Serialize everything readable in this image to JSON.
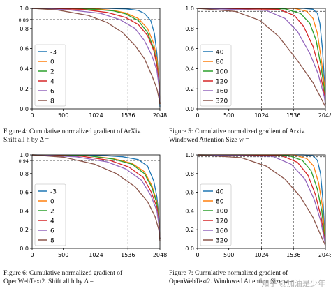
{
  "watermark": "知乎 @加油是少年",
  "figures": [
    {
      "id": "fig4",
      "caption": "Figure 4: Cumulative normalized gradient of ArXiv.\nShift all h by Δ =",
      "chart_data": {
        "type": "line",
        "xlim": [
          0,
          2048
        ],
        "ylim": [
          0,
          1.0
        ],
        "x_ticks": [
          "0",
          "500",
          "1024",
          "1536",
          "2048"
        ],
        "x_tick_values": [
          0,
          500,
          1024,
          1536,
          2048
        ],
        "y_ticks": [
          "0.0",
          "0.2",
          "0.4",
          "0.6",
          "0.8",
          "0.89",
          "1.0"
        ],
        "y_tick_values": [
          0,
          0.2,
          0.4,
          0.6,
          0.8,
          0.89,
          1.0
        ],
        "vlines": [
          1024,
          1536
        ],
        "hline": 0.89,
        "legend_position": "lower-left",
        "series": [
          {
            "name": "-3",
            "color": "#1f77b4",
            "x": [
              0,
              1200,
              1500,
              1700,
              1800,
              1900,
              1960,
              2000,
              2030,
              2048
            ],
            "y": [
              1.0,
              1.0,
              0.995,
              0.98,
              0.95,
              0.88,
              0.75,
              0.55,
              0.3,
              0.02
            ]
          },
          {
            "name": "0",
            "color": "#ff7f0e",
            "x": [
              0,
              1000,
              1300,
              1500,
              1700,
              1850,
              1950,
              2000,
              2030,
              2048
            ],
            "y": [
              1.0,
              0.995,
              0.98,
              0.955,
              0.9,
              0.8,
              0.65,
              0.5,
              0.3,
              0.05
            ]
          },
          {
            "name": "2",
            "color": "#2ca02c",
            "x": [
              0,
              1000,
              1300,
              1500,
              1700,
              1850,
              1950,
              2000,
              2030,
              2048
            ],
            "y": [
              1.0,
              0.99,
              0.975,
              0.945,
              0.88,
              0.76,
              0.6,
              0.45,
              0.28,
              0.05
            ]
          },
          {
            "name": "4",
            "color": "#d62728",
            "x": [
              0,
              800,
              1200,
              1500,
              1700,
              1850,
              1950,
              2000,
              2030,
              2048
            ],
            "y": [
              1.0,
              0.99,
              0.96,
              0.91,
              0.84,
              0.73,
              0.58,
              0.43,
              0.27,
              0.05
            ]
          },
          {
            "name": "6",
            "color": "#9467bd",
            "x": [
              0,
              600,
              1100,
              1400,
              1650,
              1800,
              1920,
              2000,
              2030,
              2048
            ],
            "y": [
              1.0,
              0.985,
              0.95,
              0.89,
              0.8,
              0.68,
              0.53,
              0.38,
              0.24,
              0.06
            ]
          },
          {
            "name": "8",
            "color": "#8c564b",
            "x": [
              0,
              400,
              900,
              1200,
              1450,
              1650,
              1800,
              1920,
              2000,
              2048
            ],
            "y": [
              1.0,
              0.985,
              0.93,
              0.86,
              0.76,
              0.63,
              0.5,
              0.33,
              0.2,
              0.06
            ]
          }
        ]
      }
    },
    {
      "id": "fig5",
      "caption": "Figure 5: Cumulative normalized gradient of Arxiv.\nWindowed Attention Size w =",
      "chart_data": {
        "type": "line",
        "xlim": [
          0,
          2048
        ],
        "ylim": [
          0,
          1.0
        ],
        "x_ticks": [
          "0",
          "500",
          "1024",
          "1536",
          "2048"
        ],
        "x_tick_values": [
          0,
          500,
          1024,
          1536,
          2048
        ],
        "y_ticks": [
          "0.0",
          "0.2",
          "0.4",
          "0.6",
          "0.8",
          "1.0"
        ],
        "y_tick_values": [
          0,
          0.2,
          0.4,
          0.6,
          0.8,
          1.0
        ],
        "vlines": [
          1024,
          1536
        ],
        "hline": 0.97,
        "legend_position": "lower-left",
        "series": [
          {
            "name": "40",
            "color": "#1f77b4",
            "x": [
              0,
              1700,
              1850,
              1920,
              1960,
              2000,
              2030,
              2048
            ],
            "y": [
              1.0,
              1.0,
              0.99,
              0.95,
              0.85,
              0.6,
              0.3,
              0.05
            ]
          },
          {
            "name": "80",
            "color": "#ff7f0e",
            "x": [
              0,
              1550,
              1750,
              1850,
              1920,
              1980,
              2030,
              2048
            ],
            "y": [
              1.0,
              1.0,
              0.97,
              0.9,
              0.75,
              0.5,
              0.25,
              0.05
            ]
          },
          {
            "name": "100",
            "color": "#2ca02c",
            "x": [
              0,
              1400,
              1650,
              1800,
              1900,
              1970,
              2030,
              2048
            ],
            "y": [
              1.0,
              0.995,
              0.95,
              0.85,
              0.68,
              0.45,
              0.2,
              0.05
            ]
          },
          {
            "name": "120",
            "color": "#d62728",
            "x": [
              0,
              1300,
              1550,
              1700,
              1850,
              1950,
              2030,
              2048
            ],
            "y": [
              1.0,
              0.99,
              0.93,
              0.82,
              0.62,
              0.4,
              0.15,
              0.05
            ]
          },
          {
            "name": "160",
            "color": "#9467bd",
            "x": [
              0,
              1100,
              1400,
              1600,
              1800,
              1930,
              2030,
              2048
            ],
            "y": [
              1.0,
              0.98,
              0.9,
              0.77,
              0.55,
              0.35,
              0.12,
              0.04
            ]
          },
          {
            "name": "320",
            "color": "#8c564b",
            "x": [
              0,
              600,
              1000,
              1300,
              1600,
              1850,
              2000,
              2048
            ],
            "y": [
              1.0,
              0.97,
              0.88,
              0.72,
              0.48,
              0.26,
              0.08,
              0.02
            ]
          }
        ]
      }
    },
    {
      "id": "fig6",
      "caption": "Figure 6: Cumulative normalized gradient of\nOpenWebText2. Shift all h by Δ =",
      "chart_data": {
        "type": "line",
        "xlim": [
          0,
          2048
        ],
        "ylim": [
          0,
          1.0
        ],
        "x_ticks": [
          "0",
          "500",
          "1024",
          "1536",
          "2048"
        ],
        "x_tick_values": [
          0,
          500,
          1024,
          1536,
          2048
        ],
        "y_ticks": [
          "0.0",
          "0.2",
          "0.4",
          "0.6",
          "0.8",
          "0.94",
          "1.0"
        ],
        "y_tick_values": [
          0,
          0.2,
          0.4,
          0.6,
          0.8,
          0.94,
          1.0
        ],
        "vlines": [
          1024,
          1536
        ],
        "hline": 0.94,
        "legend_position": "lower-left",
        "series": [
          {
            "name": "-3",
            "color": "#1f77b4",
            "x": [
              0,
              1100,
              1450,
              1700,
              1850,
              1950,
              2000,
              2030,
              2048
            ],
            "y": [
              1.0,
              0.995,
              0.98,
              0.95,
              0.88,
              0.72,
              0.55,
              0.35,
              0.1
            ]
          },
          {
            "name": "0",
            "color": "#ff7f0e",
            "x": [
              0,
              900,
              1300,
              1600,
              1800,
              1920,
              2000,
              2030,
              2048
            ],
            "y": [
              1.0,
              0.99,
              0.96,
              0.91,
              0.82,
              0.67,
              0.5,
              0.32,
              0.1
            ]
          },
          {
            "name": "2",
            "color": "#2ca02c",
            "x": [
              0,
              900,
              1300,
              1600,
              1800,
              1920,
              2000,
              2030,
              2048
            ],
            "y": [
              1.0,
              0.99,
              0.955,
              0.9,
              0.8,
              0.65,
              0.48,
              0.3,
              0.1
            ]
          },
          {
            "name": "4",
            "color": "#d62728",
            "x": [
              0,
              800,
              1250,
              1550,
              1780,
              1910,
              2000,
              2030,
              2048
            ],
            "y": [
              1.0,
              0.985,
              0.94,
              0.87,
              0.76,
              0.6,
              0.44,
              0.28,
              0.1
            ]
          },
          {
            "name": "6",
            "color": "#9467bd",
            "x": [
              0,
              700,
              1200,
              1500,
              1750,
              1900,
              2000,
              2030,
              2048
            ],
            "y": [
              1.0,
              0.98,
              0.925,
              0.85,
              0.73,
              0.57,
              0.4,
              0.26,
              0.1
            ]
          },
          {
            "name": "8",
            "color": "#8c564b",
            "x": [
              0,
              500,
              1000,
              1350,
              1650,
              1850,
              1970,
              2030,
              2048
            ],
            "y": [
              1.0,
              0.975,
              0.9,
              0.8,
              0.66,
              0.5,
              0.34,
              0.2,
              0.08
            ]
          }
        ]
      }
    },
    {
      "id": "fig7",
      "caption": "Figure 7: Cumulative normalized gradient of\nOpenWebText2. Windowed Attention Size w =",
      "chart_data": {
        "type": "line",
        "xlim": [
          0,
          2048
        ],
        "ylim": [
          0,
          1.0
        ],
        "x_ticks": [
          "0",
          "500",
          "1024",
          "1536",
          "2048"
        ],
        "x_tick_values": [
          0,
          500,
          1024,
          1536,
          2048
        ],
        "y_ticks": [
          "0.0",
          "0.2",
          "0.4",
          "0.6",
          "0.8",
          "1.0"
        ],
        "y_tick_values": [
          0,
          0.2,
          0.4,
          0.6,
          0.8,
          1.0
        ],
        "vlines": [
          1024,
          1536
        ],
        "hline": 0.98,
        "legend_position": "lower-left",
        "series": [
          {
            "name": "40",
            "color": "#1f77b4",
            "x": [
              0,
              1700,
              1850,
              1920,
              1970,
              2010,
              2048
            ],
            "y": [
              1.0,
              1.0,
              0.99,
              0.94,
              0.8,
              0.5,
              0.05
            ]
          },
          {
            "name": "80",
            "color": "#ff7f0e",
            "x": [
              0,
              1550,
              1750,
              1860,
              1940,
              2000,
              2048
            ],
            "y": [
              1.0,
              1.0,
              0.96,
              0.88,
              0.7,
              0.45,
              0.05
            ]
          },
          {
            "name": "100",
            "color": "#2ca02c",
            "x": [
              0,
              1450,
              1680,
              1820,
              1920,
              1990,
              2048
            ],
            "y": [
              1.0,
              0.995,
              0.94,
              0.83,
              0.63,
              0.4,
              0.05
            ]
          },
          {
            "name": "120",
            "color": "#d62728",
            "x": [
              0,
              1350,
              1600,
              1770,
              1890,
              1980,
              2048
            ],
            "y": [
              1.0,
              0.99,
              0.92,
              0.78,
              0.57,
              0.33,
              0.05
            ]
          },
          {
            "name": "160",
            "color": "#9467bd",
            "x": [
              0,
              1200,
              1500,
              1720,
              1870,
              1970,
              2048
            ],
            "y": [
              1.0,
              0.985,
              0.9,
              0.74,
              0.52,
              0.3,
              0.04
            ]
          },
          {
            "name": "320",
            "color": "#8c564b",
            "x": [
              0,
              700,
              1100,
              1400,
              1650,
              1850,
              2000,
              2048
            ],
            "y": [
              1.0,
              0.97,
              0.88,
              0.74,
              0.55,
              0.33,
              0.1,
              0.03
            ]
          }
        ]
      }
    }
  ]
}
